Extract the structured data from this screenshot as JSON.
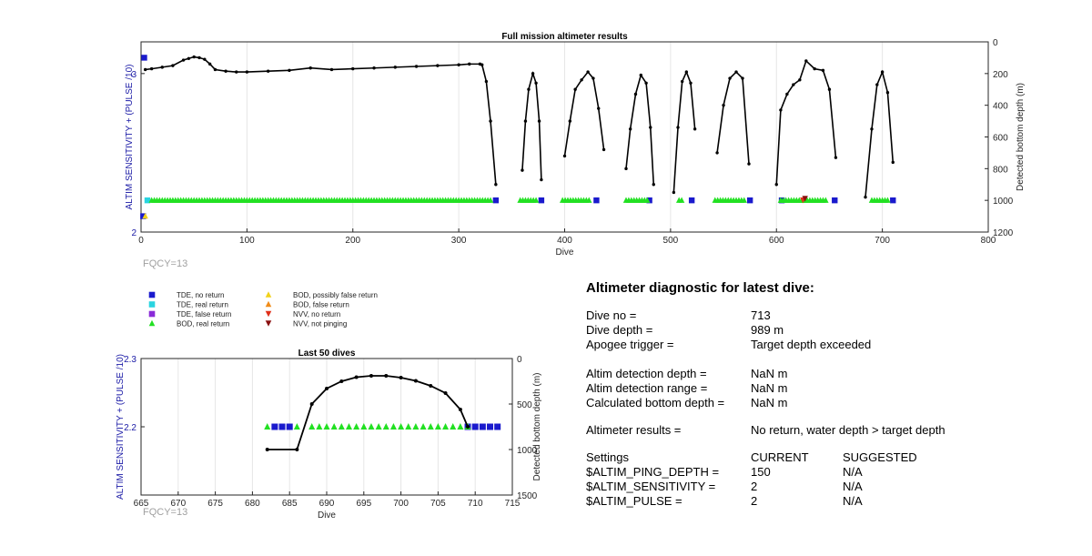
{
  "top_chart": {
    "title": "Full mission altimeter results",
    "ylabel_left": "ALTIM SENSITIVITY + (PULSE /10)",
    "ylabel_right": "Detected bottom depth (m)",
    "xlabel": "Dive",
    "fqcy": "FQCY=13",
    "xticks": [
      "0",
      "100",
      "200",
      "300",
      "400",
      "500",
      "600",
      "700",
      "800"
    ],
    "yticks_left": [
      "2",
      "3"
    ],
    "yticks_right": [
      "0",
      "200",
      "400",
      "600",
      "800",
      "1000",
      "1200"
    ]
  },
  "bottom_chart": {
    "title": "Last 50 dives",
    "ylabel_left": "ALTIM SENSITIVITY + (PULSE /10)",
    "ylabel_right": "Detected bottom depth (m)",
    "xlabel": "Dive",
    "fqcy": "FQCY=13",
    "xticks": [
      "665",
      "670",
      "675",
      "680",
      "685",
      "690",
      "695",
      "700",
      "705",
      "710",
      "715"
    ],
    "yticks_left": [
      "2.2",
      "2.3"
    ],
    "yticks_right": [
      "0",
      "500",
      "1000",
      "1500"
    ]
  },
  "legend": {
    "items": [
      {
        "label": "TDE, no return",
        "marker": "square",
        "color": "#1a1acd"
      },
      {
        "label": "TDE, real return",
        "marker": "square",
        "color": "#2ad4e0"
      },
      {
        "label": "TDE, false return",
        "marker": "square",
        "color": "#8a2bd8"
      },
      {
        "label": "BOD, real return",
        "marker": "triangle-up",
        "color": "#22e022"
      },
      {
        "label": "BOD, possibly false return",
        "marker": "triangle-up",
        "color": "#f2d21a"
      },
      {
        "label": "BOD, false return",
        "marker": "triangle-up",
        "color": "#f08c1a"
      },
      {
        "label": "NVV, no return",
        "marker": "triangle-down",
        "color": "#e0301a"
      },
      {
        "label": "NVV, not pinging",
        "marker": "triangle-down",
        "color": "#8a1010"
      }
    ]
  },
  "diagnostic": {
    "heading": "Altimeter diagnostic for latest dive:",
    "rows": [
      {
        "label": "Dive no =",
        "value": "713"
      },
      {
        "label": "Dive depth =",
        "value": "989 m"
      },
      {
        "label": "Apogee trigger =",
        "value": "Target depth exceeded"
      },
      {
        "label": "Altim detection depth =",
        "value": "NaN m"
      },
      {
        "label": "Altim detection range =",
        "value": "NaN m"
      },
      {
        "label": "Calculated bottom depth =",
        "value": "NaN m"
      },
      {
        "label": "Altimeter results =",
        "value": "No return, water depth > target depth"
      }
    ],
    "settings_header": {
      "label": "Settings",
      "current": "CURRENT",
      "suggested": "SUGGESTED"
    },
    "settings": [
      {
        "label": "$ALTIM_PING_DEPTH =",
        "current": "150",
        "suggested": "N/A"
      },
      {
        "label": "$ALTIM_SENSITIVITY =",
        "current": "2",
        "suggested": "N/A"
      },
      {
        "label": "$ALTIM_PULSE =",
        "current": "2",
        "suggested": "N/A"
      }
    ]
  },
  "chart_data": [
    {
      "type": "scatter",
      "title": "Full mission altimeter results",
      "xlabel": "Dive",
      "ylabel": "ALTIM SENSITIVITY + (PULSE /10)",
      "ylabel_right": "Detected bottom depth (m)",
      "xlim": [
        0,
        800
      ],
      "ylim": [
        2,
        3.2
      ],
      "ylim_right_reversed": [
        0,
        1200
      ],
      "grid": true,
      "series": [
        {
          "name": "TDE, no return",
          "points": [
            [
              3,
              3.1
            ],
            [
              2,
              2.1
            ],
            [
              335,
              2.2
            ],
            [
              378,
              2.2
            ],
            [
              430,
              2.2
            ],
            [
              480,
              2.2
            ],
            [
              520,
              2.2
            ],
            [
              575,
              2.2
            ],
            [
              605,
              2.2
            ],
            [
              655,
              2.2
            ],
            [
              710,
              2.2
            ]
          ]
        },
        {
          "name": "TDE, real return",
          "points": [
            [
              6,
              2.2
            ]
          ]
        },
        {
          "name": "BOD, real return",
          "x_ranges": [
            [
              10,
              330
            ],
            [
              358,
              374
            ],
            [
              398,
              425
            ],
            [
              458,
              478
            ],
            [
              508,
              512
            ],
            [
              542,
              570
            ],
            [
              604,
              648
            ],
            [
              690,
              706
            ]
          ],
          "y": 2.2
        },
        {
          "name": "BOD, possibly false return",
          "points": [
            [
              4,
              2.1
            ]
          ]
        },
        {
          "name": "NVV, no return",
          "points": [
            [
              625,
              2.2
            ]
          ]
        },
        {
          "name": "NVV, not pinging",
          "points": [
            [
              627,
              2.21
            ]
          ]
        },
        {
          "name": "Detected bottom depth (m)",
          "axis": "right",
          "dives": [
            {
              "x": [
                4,
                10,
                20,
                30,
                40,
                45,
                50,
                55,
                60,
                65,
                70,
                80,
                90,
                100,
                120,
                140,
                160,
                180,
                200,
                220,
                240,
                260,
                280,
                300,
                310,
                320,
                322,
                326,
                330,
                335
              ],
              "y": [
                175,
                170,
                160,
                150,
                115,
                105,
                95,
                100,
                110,
                140,
                175,
                185,
                190,
                190,
                185,
                180,
                165,
                175,
                170,
                165,
                160,
                155,
                150,
                145,
                140,
                140,
                145,
                250,
                500,
                900
              ]
            },
            {
              "x": [
                360,
                363,
                366,
                370,
                373,
                376,
                378
              ],
              "y": [
                810,
                500,
                300,
                200,
                260,
                500,
                870
              ]
            },
            {
              "x": [
                400,
                405,
                410,
                416,
                422,
                427,
                432,
                437
              ],
              "y": [
                720,
                500,
                300,
                240,
                190,
                230,
                420,
                680
              ]
            },
            {
              "x": [
                458,
                462,
                467,
                472,
                477,
                481,
                484
              ],
              "y": [
                800,
                550,
                330,
                210,
                260,
                540,
                900
              ]
            },
            {
              "x": [
                503,
                507,
                511,
                515,
                519,
                523
              ],
              "y": [
                950,
                540,
                250,
                190,
                260,
                550
              ]
            },
            {
              "x": [
                544,
                550,
                556,
                562,
                568,
                574
              ],
              "y": [
                700,
                400,
                230,
                190,
                230,
                770
              ]
            },
            {
              "x": [
                600,
                604,
                610,
                616,
                622,
                628,
                636,
                644,
                650,
                656
              ],
              "y": [
                900,
                430,
                330,
                270,
                240,
                120,
                170,
                180,
                300,
                730
              ]
            },
            {
              "x": [
                684,
                690,
                695,
                700,
                705,
                710
              ],
              "y": [
                980,
                550,
                270,
                190,
                320,
                760
              ]
            }
          ]
        }
      ]
    },
    {
      "type": "scatter",
      "title": "Last 50 dives",
      "xlabel": "Dive",
      "ylabel": "ALTIM SENSITIVITY + (PULSE /10)",
      "ylabel_right": "Detected bottom depth (m)",
      "xlim": [
        665,
        715
      ],
      "ylim": [
        2.1,
        2.3
      ],
      "ylim_right_reversed": [
        0,
        1500
      ],
      "grid": true,
      "series": [
        {
          "name": "TDE, no return",
          "x": [
            683,
            684,
            685,
            709,
            710,
            711,
            712,
            713
          ],
          "y": 2.2
        },
        {
          "name": "BOD, real return",
          "x": [
            682,
            686,
            688,
            689,
            690,
            691,
            692,
            693,
            694,
            695,
            696,
            697,
            698,
            699,
            700,
            701,
            702,
            703,
            704,
            705,
            706,
            707,
            708,
            709
          ],
          "y": 2.2
        },
        {
          "name": "Detected bottom depth (m)",
          "axis": "right",
          "x": [
            682,
            686,
            688,
            690,
            692,
            694,
            696,
            698,
            700,
            702,
            704,
            706,
            708,
            709
          ],
          "y": [
            1000,
            1000,
            500,
            330,
            250,
            205,
            190,
            190,
            210,
            245,
            300,
            380,
            560,
            750
          ]
        }
      ]
    }
  ]
}
